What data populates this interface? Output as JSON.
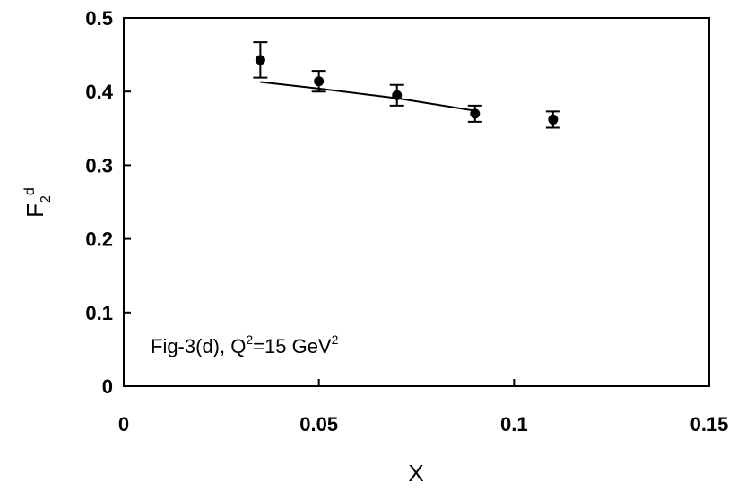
{
  "chart_data": {
    "type": "scatter",
    "xlabel": "X",
    "ylabel_main": "F",
    "ylabel_sub": "2",
    "ylabel_sup": "d",
    "annotation": {
      "prefix": "Fig-3(d), Q",
      "sup1": "2",
      "middle": "=15 GeV",
      "sup2": "2"
    },
    "xlim": [
      0,
      0.15
    ],
    "ylim": [
      0,
      0.5
    ],
    "x_ticks": [
      0,
      0.05,
      0.1,
      0.15
    ],
    "x_tick_labels": [
      "0",
      "0.05",
      "0.1",
      "0.15"
    ],
    "y_ticks": [
      0,
      0.1,
      0.2,
      0.3,
      0.4,
      0.5
    ],
    "y_tick_labels": [
      "0",
      "0.1",
      "0.2",
      "0.3",
      "0.4",
      "0.5"
    ],
    "grid": false,
    "series": [
      {
        "mode": "markers+errorbars",
        "x": [
          0.035,
          0.05,
          0.07,
          0.09,
          0.11
        ],
        "y": [
          0.443,
          0.414,
          0.395,
          0.37,
          0.362
        ],
        "error": [
          0.024,
          0.014,
          0.014,
          0.011,
          0.011
        ]
      },
      {
        "mode": "line",
        "x": [
          0.035,
          0.05,
          0.07,
          0.09
        ],
        "y": [
          0.413,
          0.404,
          0.391,
          0.374
        ]
      }
    ],
    "colors": {
      "markers": "#000000",
      "line": "#000000"
    }
  }
}
